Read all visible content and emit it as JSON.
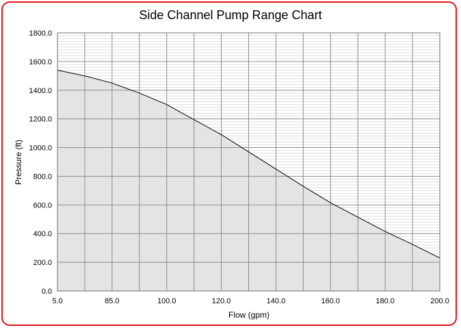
{
  "chart_data": {
    "type": "area",
    "title": "Side Channel Pump Range Chart",
    "xlabel": "Flow (gpm)",
    "ylabel": "Pressure (ft)",
    "x_tick_labels": [
      "5.0",
      "",
      "85.0",
      "",
      "100.0",
      "",
      "120.0",
      "",
      "140.0",
      "",
      "160.0",
      "",
      "180.0",
      "",
      "200.0"
    ],
    "y_tick_labels": [
      "0.0",
      "200.0",
      "400.0",
      "600.0",
      "800.0",
      "1000.0",
      "1200.0",
      "1400.0",
      "1600.0",
      "1800.0"
    ],
    "ylim": [
      0,
      1800
    ],
    "grid": true,
    "colors": {
      "fill": "#e4e4e4",
      "line": "#000000",
      "grid_major": "#8c8c8c",
      "grid_minor": "#dedede",
      "border": "#e0141c"
    },
    "series": [
      {
        "x_index": [
          0,
          1,
          2,
          3,
          4,
          5,
          6,
          7,
          8,
          9,
          10,
          11,
          12,
          13,
          14
        ],
        "values": [
          1540,
          1500,
          1450,
          1380,
          1300,
          1195,
          1090,
          970,
          850,
          730,
          615,
          515,
          415,
          325,
          230
        ]
      }
    ]
  }
}
